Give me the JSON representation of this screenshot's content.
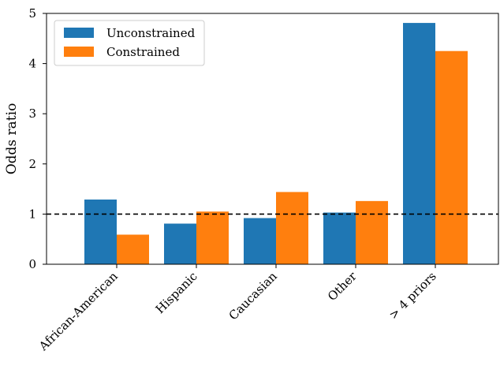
{
  "chart_data": {
    "type": "bar",
    "title": "",
    "xlabel": "",
    "ylabel": "Odds ratio",
    "categories": [
      "African-American",
      "Hispanic",
      "Caucasian",
      "Other",
      "> 4 priors"
    ],
    "series": [
      {
        "name": "Unconstrained",
        "color": "#1f77b4",
        "values": [
          1.29,
          0.81,
          0.92,
          1.03,
          4.81
        ]
      },
      {
        "name": "Constrained",
        "color": "#ff7f0e",
        "values": [
          0.59,
          1.05,
          1.44,
          1.26,
          4.25
        ]
      }
    ],
    "ylim": [
      0,
      5
    ],
    "yticks": [
      0,
      1,
      2,
      3,
      4,
      5
    ],
    "reference_line": {
      "y": 1,
      "style": "dashed",
      "color": "#000000"
    },
    "grid": false,
    "legend_position": "top-left"
  }
}
